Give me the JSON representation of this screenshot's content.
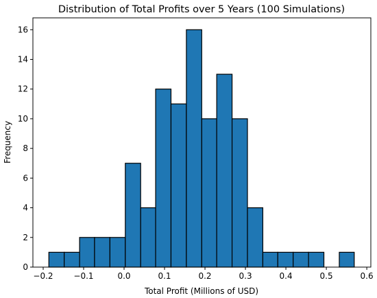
{
  "chart_data": {
    "type": "histogram",
    "title": "Distribution of Total Profits over 5 Years (100 Simulations)",
    "xlabel": "Total Profit (Millions of USD)",
    "ylabel": "Frequency",
    "bins": [
      -0.186,
      -0.148,
      -0.11,
      -0.073,
      -0.035,
      0.003,
      0.041,
      0.078,
      0.116,
      0.154,
      0.192,
      0.229,
      0.267,
      0.305,
      0.343,
      0.38,
      0.418,
      0.456,
      0.494,
      0.532,
      0.569
    ],
    "counts": [
      1,
      1,
      2,
      2,
      2,
      7,
      4,
      12,
      11,
      16,
      10,
      13,
      10,
      4,
      1,
      1,
      1,
      1,
      0,
      1
    ],
    "color": "#1f77b4",
    "edgecolor": "#000000",
    "xlim": [
      -0.2254,
      0.61
    ],
    "ylim": [
      0,
      16.8
    ],
    "xticks": [
      {
        "value": -0.2,
        "label": "−0.2"
      },
      {
        "value": -0.1,
        "label": "−0.1"
      },
      {
        "value": 0.0,
        "label": "0.0"
      },
      0.1,
      0.2,
      0.3,
      0.4,
      0.5,
      0.6
    ],
    "yticks": [
      0,
      2,
      4,
      6,
      8,
      10,
      12,
      14,
      16
    ]
  }
}
